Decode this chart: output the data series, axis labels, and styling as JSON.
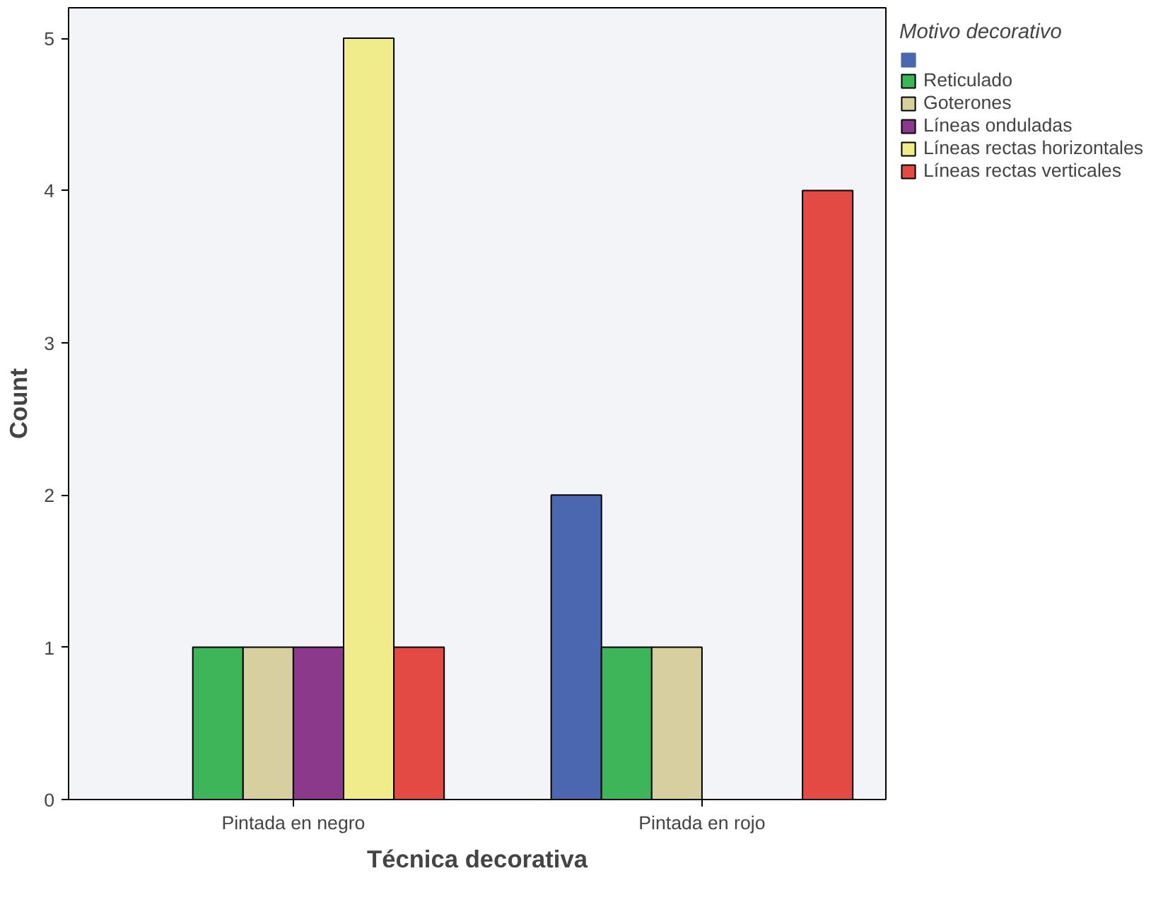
{
  "chart_data": {
    "type": "bar",
    "xlabel": "Técnica decorativa",
    "ylabel": "Count",
    "legend_title": "Motivo decorativo",
    "legend": "right",
    "grid": false,
    "categories": [
      "Pintada en negro",
      "Pintada en rojo"
    ],
    "ylim": [
      0,
      5.2
    ],
    "yticks": [
      0,
      1,
      2,
      3,
      4,
      5
    ],
    "series": [
      {
        "color": "#4a67b0",
        "values": [
          0,
          2
        ]
      },
      {
        "name": "Reticulado",
        "color": "#3fb55a",
        "values": [
          1,
          1
        ]
      },
      {
        "name": "Goterones",
        "color": "#d8cfa1",
        "values": [
          1,
          1
        ]
      },
      {
        "name": "Líneas onduladas",
        "color": "#8b3a8b",
        "values": [
          1,
          0
        ]
      },
      {
        "name": "Líneas rectas horizontales",
        "color": "#f0ec8c",
        "values": [
          5,
          0
        ]
      },
      {
        "name": "Líneas rectas verticales",
        "color": "#e34a44",
        "values": [
          1,
          4
        ]
      }
    ]
  }
}
